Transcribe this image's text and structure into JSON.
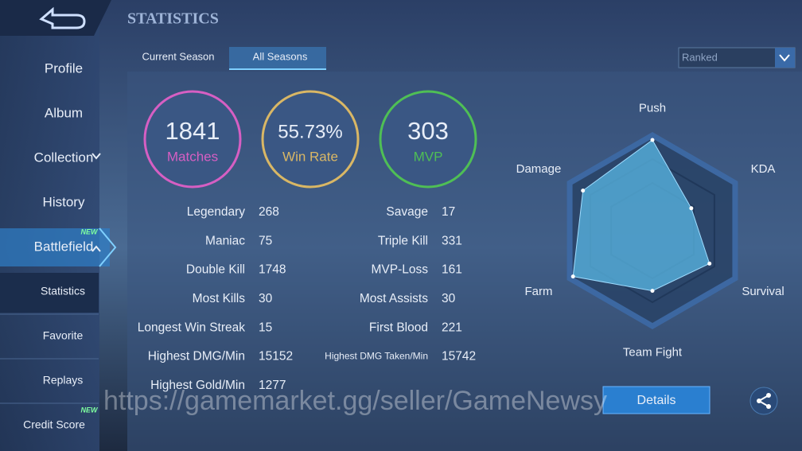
{
  "header": {
    "title": "STATISTICS"
  },
  "sidebar": {
    "items": [
      {
        "label": "Profile"
      },
      {
        "label": "Album"
      },
      {
        "label": "Collection"
      },
      {
        "label": "History"
      },
      {
        "label": "Battlefield",
        "badge": "NEW"
      }
    ],
    "subitems": [
      {
        "label": "Statistics"
      },
      {
        "label": "Favorite"
      },
      {
        "label": "Replays"
      },
      {
        "label": "Credit Score",
        "badge": "NEW"
      }
    ]
  },
  "tabs": [
    {
      "label": "Current Season"
    },
    {
      "label": "All Seasons",
      "active": true
    }
  ],
  "dropdown": "Ranked",
  "summary": [
    {
      "value": 1841,
      "label": "Matches",
      "color": "#d65fc3"
    },
    {
      "value": "55.73%",
      "label": "Win Rate",
      "color": "#d9b765"
    },
    {
      "value": 303,
      "label": "MVP",
      "color": "#4fbf55"
    }
  ],
  "stats": {
    "left": [
      {
        "label": "Legendary",
        "value": 268
      },
      {
        "label": "Maniac",
        "value": 75
      },
      {
        "label": "Double Kill",
        "value": 1748
      },
      {
        "label": "Most Kills",
        "value": 30
      },
      {
        "label": "Longest Win Streak",
        "value": 15
      },
      {
        "label": "Highest DMG/Min",
        "value": 15152
      },
      {
        "label": "Highest Gold/Min",
        "value": 1277
      }
    ],
    "right": [
      {
        "label": "Savage",
        "value": 17
      },
      {
        "label": "Triple Kill",
        "value": 331
      },
      {
        "label": "MVP-Loss",
        "value": 161
      },
      {
        "label": "Most Assists",
        "value": 30
      },
      {
        "label": "First Blood",
        "value": 221
      },
      {
        "label": "Highest DMG Taken/Min",
        "value": 15742
      }
    ]
  },
  "radar": {
    "labels": [
      "Push",
      "KDA",
      "Survival",
      "Team Fight",
      "Farm",
      "Damage"
    ],
    "values": [
      95,
      47,
      69,
      63,
      96,
      84
    ],
    "max": 100,
    "color": "#5ab8e6"
  },
  "details_button": "Details",
  "watermark": "https://gamemarket.gg/seller/GameNewsy"
}
